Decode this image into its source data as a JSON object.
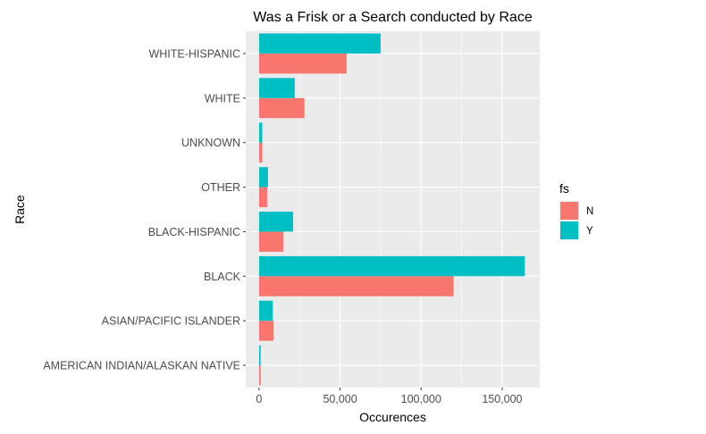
{
  "chart_data": {
    "type": "bar",
    "orientation": "horizontal",
    "title": "Was a Frisk or a Search conducted by Race",
    "xlabel": "Occurences",
    "ylabel": "Race",
    "categories": [
      "WHITE-HISPANIC",
      "WHITE",
      "UNKNOWN",
      "OTHER",
      "BLACK-HISPANIC",
      "BLACK",
      "ASIAN/PACIFIC ISLANDER",
      "AMERICAN INDIAN/ALASKAN NATIVE"
    ],
    "series": [
      {
        "name": "N",
        "color": "#F8766D",
        "values": [
          54000,
          28000,
          2000,
          5000,
          15000,
          120000,
          9000,
          1000
        ]
      },
      {
        "name": "Y",
        "color": "#00BFC4",
        "values": [
          75000,
          22000,
          2000,
          5500,
          21000,
          164000,
          8500,
          1000
        ]
      }
    ],
    "xlim": [
      -8200,
      173200
    ],
    "xticks": [
      0,
      50000,
      100000,
      150000
    ],
    "xtick_labels": [
      "0",
      "50,000",
      "100,000",
      "150,000"
    ],
    "legend": {
      "title": "fs",
      "placement": "right",
      "entries": [
        "N",
        "Y"
      ]
    },
    "grid": true,
    "panel_color": "#EBEBEB",
    "grid_color": "#FFFFFF"
  }
}
